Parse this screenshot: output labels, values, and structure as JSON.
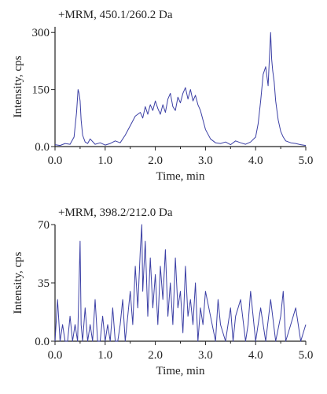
{
  "chart_data": [
    {
      "type": "line",
      "title": "+MRM, 450.1/260.2 Da",
      "xlabel": "Time, min",
      "ylabel": "Intensity, cps",
      "xlim": [
        0.0,
        5.0
      ],
      "ylim": [
        0,
        315
      ],
      "xticks": [
        "0.0",
        "1.0",
        "2.0",
        "3.0",
        "4.0",
        "5.0"
      ],
      "yticks": [
        "0.0",
        "150",
        "300"
      ],
      "ytick_values": [
        0,
        150,
        300
      ],
      "color": "#3b3fa5",
      "series": [
        {
          "x": [
            0.0,
            0.1,
            0.2,
            0.3,
            0.38,
            0.43,
            0.46,
            0.48,
            0.5,
            0.52,
            0.55,
            0.6,
            0.65,
            0.7,
            0.8,
            0.9,
            1.0,
            1.1,
            1.2,
            1.3,
            1.4,
            1.5,
            1.6,
            1.7,
            1.75,
            1.8,
            1.85,
            1.9,
            1.95,
            2.0,
            2.05,
            2.1,
            2.15,
            2.2,
            2.25,
            2.3,
            2.35,
            2.4,
            2.45,
            2.5,
            2.55,
            2.6,
            2.65,
            2.7,
            2.75,
            2.8,
            2.85,
            2.9,
            2.95,
            3.0,
            3.1,
            3.2,
            3.3,
            3.4,
            3.5,
            3.6,
            3.7,
            3.8,
            3.9,
            4.0,
            4.05,
            4.1,
            4.15,
            4.2,
            4.25,
            4.28,
            4.3,
            4.32,
            4.34,
            4.37,
            4.4,
            4.45,
            4.5,
            4.55,
            4.6,
            4.7,
            4.8,
            4.9,
            5.0
          ],
          "y": [
            5,
            3,
            8,
            6,
            25,
            90,
            150,
            140,
            120,
            70,
            30,
            12,
            8,
            20,
            6,
            10,
            4,
            8,
            15,
            10,
            30,
            55,
            80,
            90,
            75,
            105,
            85,
            110,
            95,
            120,
            100,
            85,
            110,
            90,
            125,
            140,
            105,
            95,
            130,
            115,
            140,
            155,
            125,
            150,
            120,
            135,
            110,
            95,
            70,
            45,
            20,
            10,
            8,
            12,
            5,
            15,
            10,
            6,
            12,
            25,
            60,
            120,
            190,
            210,
            160,
            250,
            300,
            230,
            200,
            170,
            120,
            70,
            40,
            25,
            15,
            10,
            8,
            5,
            3
          ]
        }
      ]
    },
    {
      "type": "line",
      "title": "+MRM, 398.2/212.0 Da",
      "xlabel": "Time, min",
      "ylabel": "Intensity, cps",
      "xlim": [
        0.0,
        5.0
      ],
      "ylim": [
        0,
        70
      ],
      "xticks": [
        "0.0",
        "1.0",
        "2.0",
        "3.0",
        "4.0",
        "5.0"
      ],
      "yticks": [
        "0.0",
        "35",
        "70"
      ],
      "ytick_values": [
        0,
        35,
        70
      ],
      "color": "#3b3fa5",
      "series": [
        {
          "x": [
            0.0,
            0.05,
            0.1,
            0.15,
            0.2,
            0.25,
            0.3,
            0.35,
            0.4,
            0.45,
            0.48,
            0.5,
            0.52,
            0.55,
            0.6,
            0.65,
            0.7,
            0.75,
            0.8,
            0.85,
            0.9,
            0.95,
            1.0,
            1.05,
            1.1,
            1.15,
            1.2,
            1.25,
            1.3,
            1.35,
            1.4,
            1.45,
            1.5,
            1.55,
            1.6,
            1.65,
            1.7,
            1.73,
            1.75,
            1.8,
            1.85,
            1.9,
            1.95,
            2.0,
            2.05,
            2.1,
            2.15,
            2.2,
            2.25,
            2.3,
            2.35,
            2.4,
            2.45,
            2.5,
            2.55,
            2.6,
            2.65,
            2.7,
            2.75,
            2.8,
            2.85,
            2.9,
            2.95,
            3.0,
            3.1,
            3.2,
            3.25,
            3.3,
            3.4,
            3.5,
            3.55,
            3.6,
            3.7,
            3.8,
            3.85,
            3.9,
            4.0,
            4.1,
            4.15,
            4.2,
            4.3,
            4.4,
            4.5,
            4.55,
            4.6,
            4.7,
            4.8,
            4.9,
            5.0
          ],
          "y": [
            0,
            25,
            0,
            10,
            0,
            0,
            15,
            0,
            10,
            0,
            35,
            60,
            10,
            0,
            20,
            0,
            10,
            0,
            25,
            0,
            0,
            15,
            0,
            10,
            0,
            20,
            0,
            0,
            10,
            25,
            0,
            15,
            30,
            10,
            45,
            20,
            55,
            70,
            30,
            60,
            15,
            50,
            20,
            40,
            10,
            45,
            25,
            55,
            15,
            35,
            10,
            50,
            20,
            30,
            5,
            45,
            15,
            25,
            10,
            35,
            0,
            20,
            10,
            30,
            15,
            0,
            25,
            10,
            0,
            20,
            0,
            15,
            25,
            0,
            10,
            30,
            0,
            20,
            10,
            0,
            25,
            0,
            15,
            30,
            0,
            10,
            20,
            0,
            10
          ]
        }
      ]
    }
  ]
}
